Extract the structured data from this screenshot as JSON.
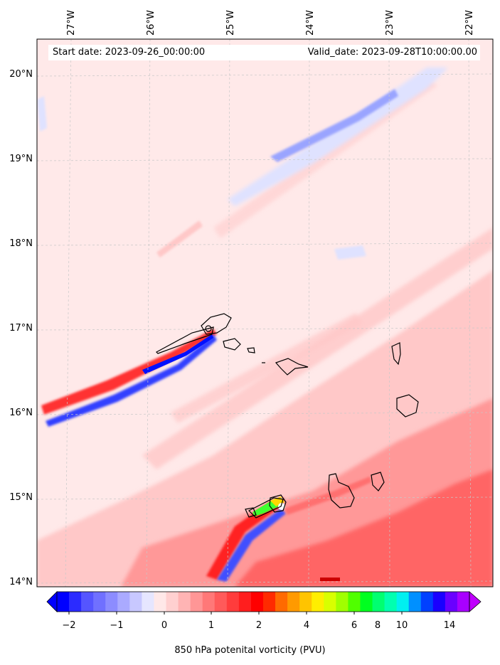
{
  "header": {
    "start_label": "Start date: 2023-09-26_00:00:00",
    "valid_label": "Valid_date: 2023-09-28T10:00:00.00"
  },
  "axes": {
    "longitude_labels": [
      "27°W",
      "26°W",
      "25°W",
      "24°W",
      "23°W",
      "22°W"
    ],
    "latitude_labels": [
      "20°N",
      "19°N",
      "18°N",
      "17°N",
      "16°N",
      "15°N",
      "14°N"
    ]
  },
  "colorbar": {
    "label": "850 hPa potenital vorticity (PVU)",
    "tick_labels": [
      "−2",
      "−1",
      "0",
      "1",
      "2",
      "4",
      "6",
      "8",
      "10",
      "14"
    ],
    "colors": [
      "#0000ff",
      "#2b2bff",
      "#5555ff",
      "#7070ff",
      "#8c8cff",
      "#aaaaff",
      "#c8c8ff",
      "#e6e6ff",
      "#ffe8e8",
      "#ffd0d0",
      "#ffb4b4",
      "#ff9696",
      "#ff7878",
      "#ff5a5a",
      "#ff3c3c",
      "#ff1e1e",
      "#ff0000",
      "#ff2a00",
      "#ff6a00",
      "#ff9a00",
      "#ffc400",
      "#ffee00",
      "#d8ff00",
      "#a0ff00",
      "#50ff00",
      "#00ff20",
      "#00ff70",
      "#00ffb0",
      "#00f0f0",
      "#0090ff",
      "#0040ff",
      "#1a00ff",
      "#6a00ff",
      "#a800ff"
    ],
    "under_color": "#0000ff",
    "over_color": "#c000ff"
  },
  "colors": {
    "background_pv": "#ffe9e9",
    "light_red": "#ffc8c8",
    "mid_red": "#ff9898",
    "strong_red": "#ff6060",
    "light_blue": "#dfe2ff",
    "blue": "#9aa4ff",
    "deep_blue": "#1a2cff",
    "coast": "#000000"
  }
}
